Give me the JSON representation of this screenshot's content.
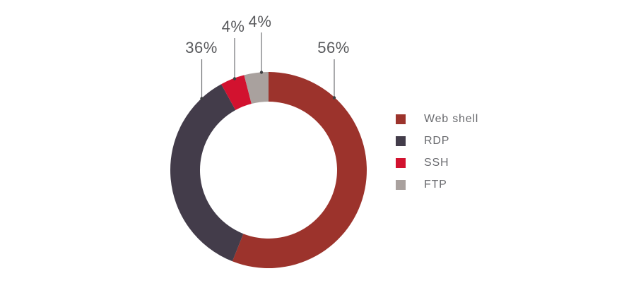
{
  "chart_data": {
    "type": "pie",
    "variant": "donut",
    "title": "",
    "start_angle_deg": 0,
    "direction": "clockwise",
    "inner_radius_ratio": 0.7,
    "legend_position": "right",
    "segments": [
      {
        "label": "Web shell",
        "value": 56,
        "pct_label": "56%",
        "color": "#9c332c"
      },
      {
        "label": "RDP",
        "value": 36,
        "pct_label": "36%",
        "color": "#433c4a"
      },
      {
        "label": "SSH",
        "value": 4,
        "pct_label": "4%",
        "color": "#d2122f"
      },
      {
        "label": "FTP",
        "value": 4,
        "pct_label": "4%",
        "color": "#a9a19e"
      }
    ]
  },
  "colors": {
    "background": "#ffffff",
    "callout_text": "#58595c",
    "legend_text": "#6a6b6f",
    "leader_line": "#707174",
    "leader_dot": "#3e3f42"
  }
}
